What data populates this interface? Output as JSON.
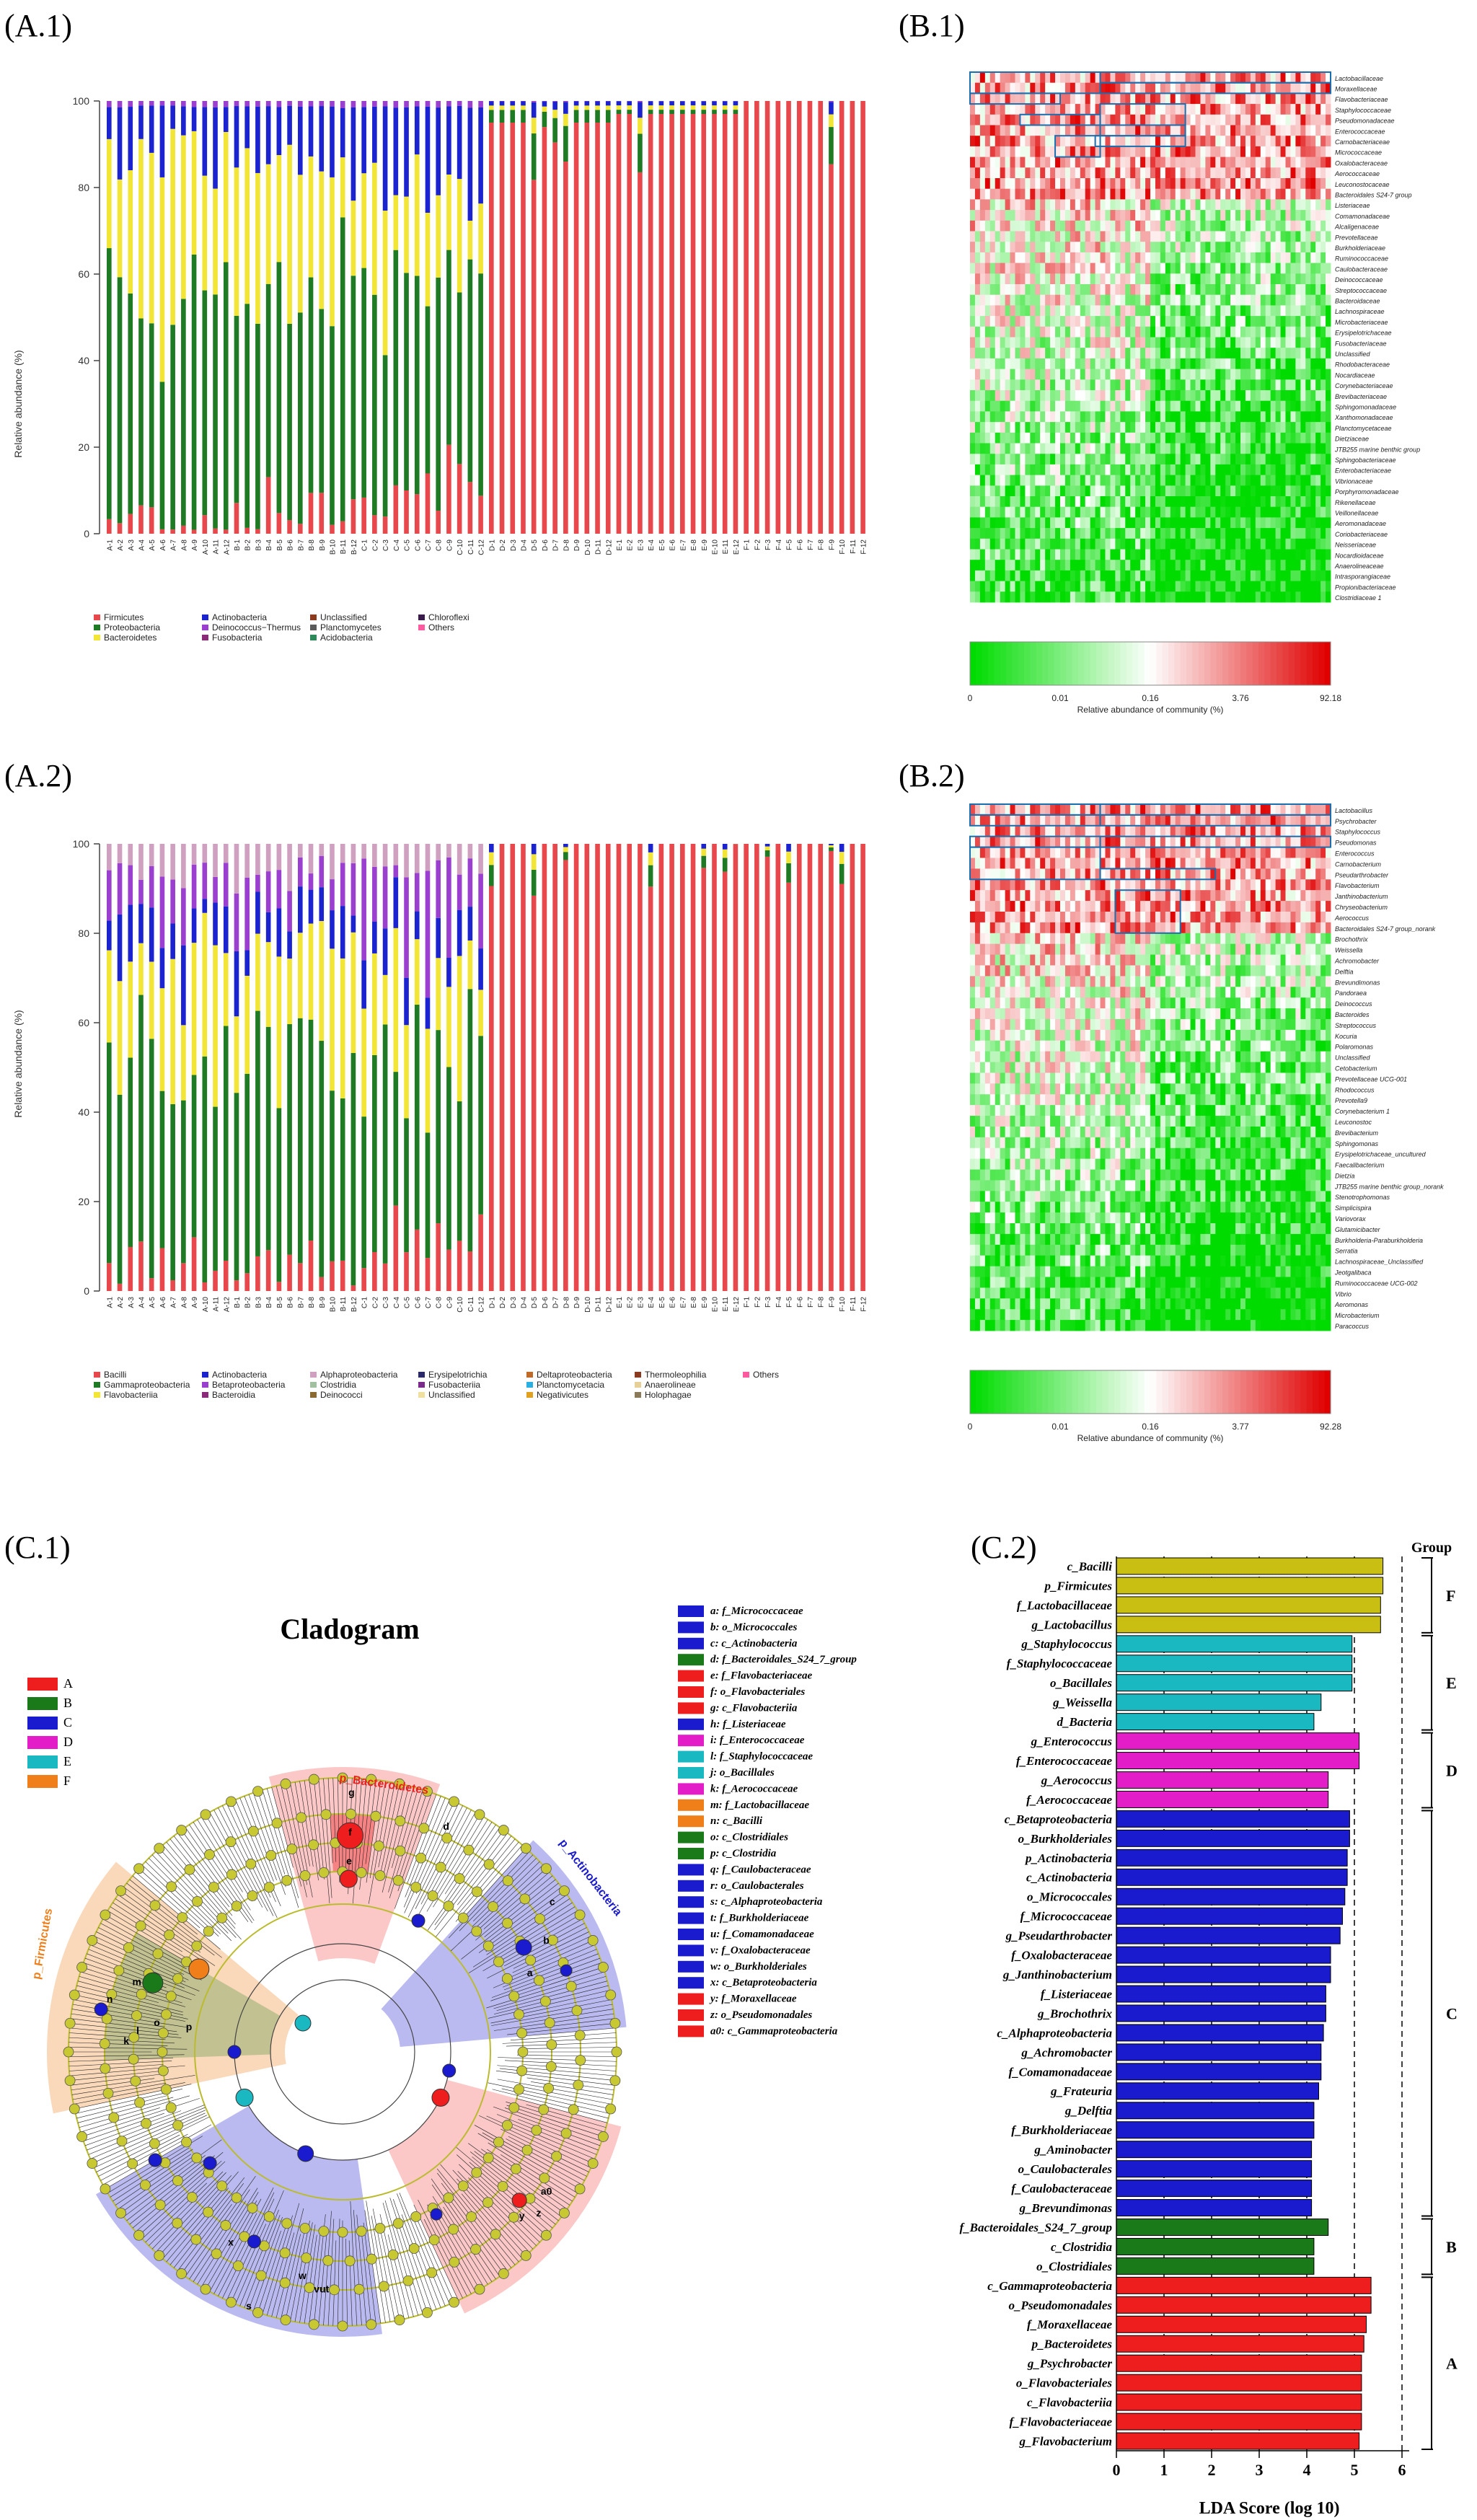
{
  "panels": {
    "a1": "(A.1)",
    "b1": "(B.1)",
    "a2": "(A.2)",
    "b2": "(B.2)",
    "c1": "(C.1)",
    "c2": "(C.2)"
  },
  "colors": {
    "firmicutes": "#e8484c",
    "proteobacteria": "#1e7a23",
    "bacteroidetes": "#f2e535",
    "actinobacteria": "#1a23cf",
    "deinococcus": "#9a3fd0",
    "fusobacteria": "#8c2a7a",
    "unclassified": "#8b3a1e",
    "planctomycetes": "#5a5a5a",
    "acidobacteria": "#2c8a5a",
    "chloroflexi": "#3a1a4a",
    "others": "#ff5aa0",
    "groupA": "#ef1e1e",
    "groupB": "#1a7a1a",
    "groupC": "#1a1acf",
    "groupD": "#e31ec8",
    "groupE": "#1ab8c0",
    "groupF": "#f07f1a",
    "groupFbar": "#c8bf12",
    "hmLow": "#00dc00",
    "hmMid": "#ffffff",
    "hmHigh": "#e00000",
    "node": "#c8c832"
  },
  "chart_data": [
    {
      "type": "bar",
      "title": "",
      "ylabel": "Relative abundance (%)",
      "ylim": [
        0,
        100
      ],
      "yticks": [
        "0",
        "20",
        "40",
        "60",
        "80",
        "100"
      ],
      "categories": [
        "A-1",
        "A-2",
        "A-3",
        "A-4",
        "A-5",
        "A-6",
        "A-7",
        "A-8",
        "A-9",
        "A-10",
        "A-11",
        "A-12",
        "B-1",
        "B-2",
        "B-3",
        "B-4",
        "B-5",
        "B-6",
        "B-7",
        "B-8",
        "B-9",
        "B-10",
        "B-11",
        "B-12",
        "C-1",
        "C-2",
        "C-3",
        "C-4",
        "C-5",
        "C-6",
        "C-7",
        "C-8",
        "C-9",
        "C-10",
        "C-11",
        "C-12",
        "D-1",
        "D-2",
        "D-3",
        "D-4",
        "D-5",
        "D-6",
        "D-7",
        "D-8",
        "D-9",
        "D-10",
        "D-11",
        "D-12",
        "E-1",
        "E-2",
        "E-3",
        "E-4",
        "E-5",
        "E-6",
        "E-7",
        "E-8",
        "E-9",
        "E-10",
        "E-11",
        "E-12",
        "F-1",
        "F-2",
        "F-3",
        "F-4",
        "F-5",
        "F-6",
        "F-7",
        "F-8",
        "F-9",
        "F-10",
        "F-11",
        "F-12"
      ],
      "stacked": true,
      "series_firmicutes_group_means": {
        "A": 3,
        "B": 6,
        "C": 10,
        "D": 95,
        "E": 97,
        "F": 100
      },
      "series_proteobacteria_group_means": {
        "A": 52,
        "B": 50,
        "C": 46,
        "D": 3,
        "E": 1,
        "F": 0
      },
      "series_bacteroidetes_group_means": {
        "A": 33,
        "B": 28,
        "C": 22,
        "D": 1,
        "E": 1,
        "F": 0
      },
      "series_actinobacteria_group_means": {
        "A": 10,
        "B": 13,
        "C": 18,
        "D": 1,
        "E": 1,
        "F": 0
      },
      "legend": [
        "Firmicutes",
        "Proteobacteria",
        "Bacteroidetes",
        "Actinobacteria",
        "Deinococcus−Thermus",
        "Fusobacteria",
        "Unclassified",
        "Planctomycetes",
        "Acidobacteria",
        "Chloroflexi",
        "Others"
      ]
    },
    {
      "type": "heatmap",
      "rows": [
        "Lactobacillaceae",
        "Moraxellaceae",
        "Flavobacteriaceae",
        "Staphylococcaceae",
        "Pseudomonadaceae",
        "Enterococcaceae",
        "Carnobacteriaceae",
        "Micrococcaceae",
        "Oxalobacteraceae",
        "Aerococcaceae",
        "Leuconostocaceae",
        "Bacteroidales S24-7 group",
        "Listeriaceae",
        "Comamonadaceae",
        "Alcaligenaceae",
        "Prevotellaceae",
        "Burkholderiaceae",
        "Ruminococcaceae",
        "Caulobacteraceae",
        "Deinococcaceae",
        "Streptococcaceae",
        "Bacteroidaceae",
        "Lachnospiraceae",
        "Microbacteriaceae",
        "Erysipelotrichaceae",
        "Fusobacteriaceae",
        "Unclassified",
        "Rhodobacteraceae",
        "Nocardiaceae",
        "Corynebacteriaceae",
        "Brevibacteriaceae",
        "Sphingomonadaceae",
        "Xanthomonadaceae",
        "Planctomycetaceae",
        "Dietziaceae",
        "JTB255 marine benthic group",
        "Sphingobacteriaceae",
        "Enterobacteriaceae",
        "Vibrionaceae",
        "Porphyromonadaceae",
        "Rikenellaceae",
        "Veillonellaceae",
        "Aeromonadaceae",
        "Coriobacteriaceae",
        "Neisseriaceae",
        "Nocardioidaceae",
        "Anaerolineaceae",
        "Intrasporangiaceae",
        "Propionibacteriaceae",
        "Clostridiaceae 1"
      ],
      "scale": [
        "0",
        "0.01",
        "0.16",
        "3.76",
        "92.18"
      ],
      "scale_label": "Relative abundance of community (%)"
    },
    {
      "type": "bar",
      "title": "",
      "ylabel": "Relative abundance (%)",
      "ylim": [
        0,
        100
      ],
      "yticks": [
        "0",
        "20",
        "40",
        "60",
        "80",
        "100"
      ],
      "stacked": true,
      "legend": [
        "Bacilli",
        "Gammaproteobacteria",
        "Flavobacteriia",
        "Actinobacteria",
        "Betaproteobacteria",
        "Bacteroidia",
        "Alphaproteobacteria",
        "Clostridia",
        "Deinococci",
        "Erysipelotrichia",
        "Fusobacteriia",
        "Unclassified",
        "Deltaproteobacteria",
        "Planctomycetacia",
        "Negativicutes",
        "Thermoleophilia",
        "Anaerolineae",
        "Holophagae",
        "Others"
      ]
    },
    {
      "type": "heatmap",
      "rows": [
        "Lactobacillus",
        "Psychrobacter",
        "Staphylococcus",
        "Pseudomonas",
        "Enterococcus",
        "Carnobacterium",
        "Pseudarthrobacter",
        "Flavobacterium",
        "Janthinobacterium",
        "Chryseobacterium",
        "Aerococcus",
        "Bacteroidales S24-7 group_norank",
        "Brochothrix",
        "Weissella",
        "Achromobacter",
        "Delftia",
        "Brevundimonas",
        "Pandoraea",
        "Deinococcus",
        "Bacteroides",
        "Streptococcus",
        "Kocuria",
        "Polaromonas",
        "Unclassified",
        "Cetobacterium",
        "Prevotellaceae UCG-001",
        "Rhodococcus",
        "Prevotella9",
        "Corynebacterium 1",
        "Leuconostoc",
        "Brevibacterium",
        "Sphingomonas",
        "Erysipelotrichaceae_uncultured",
        "Faecalibacterium",
        "Dietzia",
        "JTB255 marine benthic group_norank",
        "Stenotrophomonas",
        "Simplicispira",
        "Variovorax",
        "Glutamicibacter",
        "Burkholderia-Paraburkholderia",
        "Serratia",
        "Lachnospiraceae_Unclassified",
        "Jeotgalibaca",
        "Ruminococcaceae UCG-002",
        "Vibrio",
        "Aeromonas",
        "Microbacterium",
        "Paracoccus"
      ],
      "scale": [
        "0",
        "0.01",
        "0.16",
        "3.77",
        "92.28"
      ],
      "scale_label": "Relative abundance of community (%)"
    },
    {
      "type": "bar",
      "orientation": "horizontal",
      "xlabel": "LDA Score (log 10)",
      "xlim": [
        0,
        6
      ],
      "xticks": [
        "0",
        "1",
        "2",
        "3",
        "4",
        "5",
        "6"
      ],
      "legend_title": "Group",
      "categories": [
        "c_Bacilli",
        "p_Firmicutes",
        "f_Lactobacillaceae",
        "g_Lactobacillus",
        "g_Staphylococcus",
        "f_Staphylococcaceae",
        "o_Bacillales",
        "g_Weissella",
        "d_Bacteria",
        "g_Enterococcus",
        "f_Enterococcaceae",
        "g_Aerococcus",
        "f_Aerococcaceae",
        "c_Betaproteobacteria",
        "o_Burkholderiales",
        "p_Actinobacteria",
        "c_Actinobacteria",
        "o_Micrococcales",
        "f_Micrococcaceae",
        "g_Pseudarthrobacter",
        "f_Oxalobacteraceae",
        "g_Janthinobacterium",
        "f_Listeriaceae",
        "g_Brochothrix",
        "c_Alphaproteobacteria",
        "g_Achromobacter",
        "f_Comamonadaceae",
        "g_Frateuria",
        "g_Delftia",
        "f_Burkholderiaceae",
        "g_Aminobacter",
        "o_Caulobacterales",
        "f_Caulobacteraceae",
        "g_Brevundimonas",
        "f_Bacteroidales_S24_7_group",
        "c_Clostridia",
        "o_Clostridiales",
        "c_Gammaproteobacteria",
        "o_Pseudomonadales",
        "f_Moraxellaceae",
        "p_Bacteroidetes",
        "g_Psychrobacter",
        "o_Flavobacteriales",
        "c_Flavobacteriia",
        "f_Flavobacteriaceae",
        "g_Flavobacterium"
      ],
      "values": [
        5.6,
        5.6,
        5.55,
        5.55,
        4.95,
        4.95,
        4.95,
        4.3,
        4.15,
        5.1,
        5.1,
        4.45,
        4.45,
        4.9,
        4.9,
        4.85,
        4.85,
        4.8,
        4.75,
        4.7,
        4.5,
        4.5,
        4.4,
        4.4,
        4.35,
        4.3,
        4.3,
        4.25,
        4.15,
        4.15,
        4.1,
        4.1,
        4.1,
        4.1,
        4.45,
        4.15,
        4.15,
        5.35,
        5.35,
        5.25,
        5.2,
        5.15,
        5.15,
        5.15,
        5.15,
        5.1
      ],
      "groups": [
        "F",
        "F",
        "F",
        "F",
        "E",
        "E",
        "E",
        "E",
        "E",
        "D",
        "D",
        "D",
        "D",
        "C",
        "C",
        "C",
        "C",
        "C",
        "C",
        "C",
        "C",
        "C",
        "C",
        "C",
        "C",
        "C",
        "C",
        "C",
        "C",
        "C",
        "C",
        "C",
        "C",
        "C",
        "B",
        "B",
        "B",
        "A",
        "A",
        "A",
        "A",
        "A",
        "A",
        "A",
        "A",
        "A"
      ],
      "group_labels": [
        "F",
        "E",
        "D",
        "C",
        "B",
        "A"
      ]
    }
  ],
  "cladogram": {
    "title": "Cladogram",
    "groups": [
      "A",
      "B",
      "C",
      "D",
      "E",
      "F"
    ],
    "phylum_labels": [
      "p_Bacteroidetes",
      "p_Actinobacteria",
      "p_Firmicutes"
    ],
    "ring_letters": [
      "g",
      "f",
      "e",
      "d",
      "c",
      "b",
      "a",
      "n",
      "m",
      "l",
      "k",
      "p",
      "o",
      "s",
      "x",
      "w",
      "vut",
      "a0",
      "z",
      "y"
    ],
    "legend": [
      {
        "key": "a: f_Micrococcaceae",
        "g": "C"
      },
      {
        "key": "b: o_Micrococcales",
        "g": "C"
      },
      {
        "key": "c: c_Actinobacteria",
        "g": "C"
      },
      {
        "key": "d: f_Bacteroidales_S24_7_group",
        "g": "B"
      },
      {
        "key": "e: f_Flavobacteriaceae",
        "g": "A"
      },
      {
        "key": "f: o_Flavobacteriales",
        "g": "A"
      },
      {
        "key": "g: c_Flavobacteriia",
        "g": "A"
      },
      {
        "key": "h: f_Listeriaceae",
        "g": "C"
      },
      {
        "key": "i: f_Enterococcaceae",
        "g": "D"
      },
      {
        "key": "l: f_Staphylococcaceae",
        "g": "E"
      },
      {
        "key": "j: o_Bacillales",
        "g": "E"
      },
      {
        "key": "k: f_Aerococcaceae",
        "g": "D"
      },
      {
        "key": "m: f_Lactobacillaceae",
        "g": "F"
      },
      {
        "key": "n: c_Bacilli",
        "g": "F"
      },
      {
        "key": "o: c_Clostridiales",
        "g": "B"
      },
      {
        "key": "p: c_Clostridia",
        "g": "B"
      },
      {
        "key": "q: f_Caulobacteraceae",
        "g": "C"
      },
      {
        "key": "r: o_Caulobacterales",
        "g": "C"
      },
      {
        "key": "s: c_Alphaproteobacteria",
        "g": "C"
      },
      {
        "key": "t: f_Burkholderiaceae",
        "g": "C"
      },
      {
        "key": "u: f_Comamonadaceae",
        "g": "C"
      },
      {
        "key": "v: f_Oxalobacteraceae",
        "g": "C"
      },
      {
        "key": "w: o_Burkholderiales",
        "g": "C"
      },
      {
        "key": "x: c_Betaproteobacteria",
        "g": "C"
      },
      {
        "key": "y: f_Moraxellaceae",
        "g": "A"
      },
      {
        "key": "z: o_Pseudomonadales",
        "g": "A"
      },
      {
        "key": "a0: c_Gammaproteobacteria",
        "g": "A"
      }
    ]
  }
}
